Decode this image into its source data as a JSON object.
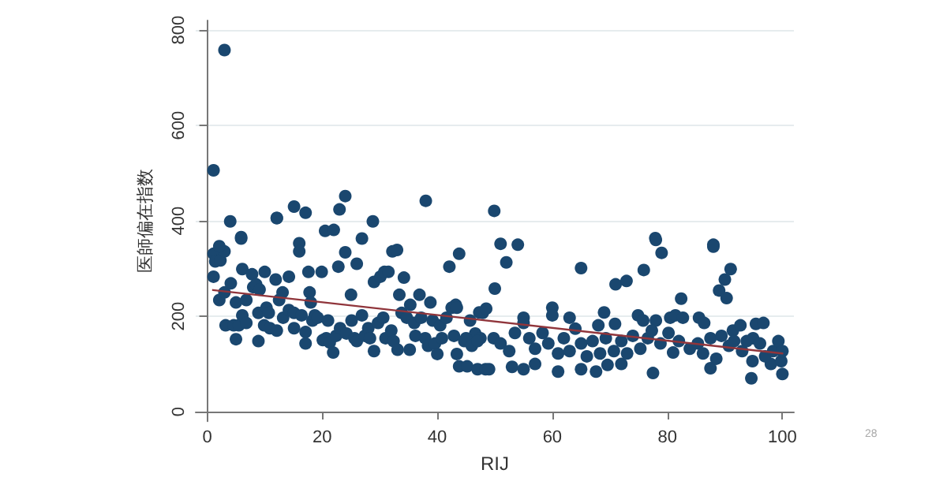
{
  "chart_data": {
    "type": "scatter",
    "xlabel": "RIJ",
    "ylabel": "医師偏在指数",
    "xlim": [
      -2,
      102
    ],
    "ylim": [
      -20,
      820
    ],
    "xticks": [
      0,
      20,
      40,
      60,
      80,
      100
    ],
    "yticks": [
      0,
      200,
      400,
      600,
      800
    ],
    "grid": "y",
    "annotations": [
      "28"
    ],
    "series": [
      {
        "type": "scatter",
        "marker": "circle",
        "color": "#1a476f",
        "x": [
          1.1,
          1.1,
          1.4,
          2.3,
          3,
          2.1,
          3,
          3.2,
          4.1,
          4,
          4.6,
          5,
          5.5,
          5,
          5.9,
          6.1,
          6.1,
          6.8,
          6.8,
          7.8,
          8,
          8.5,
          8.9,
          8.9,
          9.1,
          10,
          9.9,
          10.3,
          10.7,
          10.9,
          11.9,
          12.1,
          12.1,
          12.5,
          13.1,
          13.2,
          14.2,
          14.2,
          15.1,
          15.1,
          16,
          16,
          16.4,
          17.1,
          17.1,
          17.6,
          17.8,
          18,
          18.3,
          18.7,
          19.2,
          19.9,
          20.1,
          20.5,
          20.7,
          21,
          21.3,
          21.9,
          22.4,
          22.8,
          23.1,
          24,
          24.2,
          25,
          25.1,
          25.6,
          26,
          26,
          26.9,
          26.9,
          27.4,
          28,
          28.3,
          28.8,
          29,
          29,
          29.7,
          30.1,
          30.6,
          30.8,
          31,
          31.5,
          32,
          32.2,
          32.4,
          33,
          33.1,
          33.4,
          33.8,
          34.2,
          34.7,
          35.2,
          35.3,
          36,
          36.2,
          36.9,
          37.2,
          37.9,
          38.4,
          38.8,
          39.2,
          39.6,
          40,
          40.5,
          40.8,
          41.6,
          42.1,
          42.5,
          43.2,
          42.9,
          43.4,
          43.8,
          43.8,
          44.7,
          45.2,
          45.7,
          46.6,
          47,
          47.5,
          47.9,
          48.4,
          3,
          1.1,
          2.1,
          5.9,
          12.1,
          15.1,
          17.1,
          22,
          23,
          24,
          38,
          49.9,
          51,
          54,
          77.9,
          78,
          88,
          52,
          50,
          65,
          71,
          72.9,
          75.9,
          79,
          88,
          91,
          90,
          89,
          90.3,
          82.4,
          43.4,
          49,
          53,
          55,
          57,
          61,
          65,
          67.6,
          69.6,
          72,
          77.5,
          87.5,
          94.6,
          100,
          98,
          47.3,
          48.5,
          55,
          55,
          60,
          60,
          63,
          69,
          68,
          70.9,
          74.9,
          75.8,
          78,
          80.5,
          81.4,
          82.7,
          85.5,
          86.4,
          91.4,
          92.7,
          95.4,
          96.7,
          94.9,
          45,
          46,
          47,
          49.8,
          51,
          52.5,
          53.5,
          56,
          57,
          58.3,
          59.3,
          61,
          62,
          63,
          64,
          65,
          66,
          67,
          68.3,
          69.3,
          70.7,
          72,
          73,
          74,
          75.3,
          76.6,
          77.3,
          78.8,
          80.2,
          81,
          82,
          83.9,
          85.3,
          86.2,
          87.5,
          88.5,
          89.4,
          90.7,
          91.6,
          93,
          93.8,
          94.8,
          96.1,
          97,
          98.4,
          99.3,
          99.8,
          100
        ],
        "values": [
          283,
          331,
          315,
          317,
          336,
          234,
          250,
          181,
          269,
          399,
          181,
          152,
          181,
          229,
          363,
          299,
          202,
          234,
          186,
          288,
          261,
          267,
          148,
          207,
          256,
          293,
          181,
          218,
          207,
          175,
          277,
          170,
          406,
          234,
          250,
          197,
          283,
          213,
          207,
          175,
          353,
          336,
          202,
          167,
          143,
          293,
          250,
          229,
          191,
          202,
          197,
          293,
          150,
          379,
          154,
          191,
          145,
          124,
          159,
          304,
          175,
          334,
          164,
          245,
          191,
          154,
          310,
          148,
          202,
          363,
          159,
          175,
          154,
          399,
          127,
          272,
          186,
          283,
          197,
          293,
          154,
          293,
          170,
          336,
          148,
          339,
          130,
          245,
          207,
          281,
          197,
          130,
          224,
          186,
          159,
          245,
          197,
          154,
          138,
          229,
          191,
          143,
          121,
          181,
          154,
          197,
          304,
          218,
          224,
          159,
          121,
          331,
          95,
          148,
          95,
          191,
          164,
          89,
          154,
          207,
          89,
          758,
          506,
          347,
          366,
          406,
          430,
          417,
          381,
          424,
          452,
          442,
          421,
          352,
          350,
          364,
          360,
          350,
          313,
          258,
          301,
          267,
          274,
          297,
          333,
          346,
          299,
          277,
          254,
          238,
          237,
          218,
          89,
          94,
          89,
          100,
          84,
          89,
          84,
          98,
          100,
          81,
          91,
          70,
          79,
          100,
          208,
          216,
          197,
          186,
          218,
          202,
          197,
          208,
          181,
          184,
          202,
          191,
          191,
          197,
          202,
          197,
          197,
          186,
          170,
          181,
          184,
          186,
          154,
          154,
          138,
          148,
          154,
          143,
          127,
          165,
          154,
          132,
          165,
          143,
          122,
          154,
          127,
          174,
          143,
          116,
          148,
          122,
          154,
          127,
          148,
          122,
          159,
          132,
          154,
          170,
          143,
          165,
          124,
          148,
          132,
          143,
          122,
          154,
          111,
          159,
          138,
          148,
          127,
          148,
          106,
          143,
          116,
          127,
          148,
          106,
          127
        ]
      },
      {
        "type": "line",
        "marker": "none",
        "line_style": "solid",
        "color": "#90353b",
        "x": [
          1,
          100
        ],
        "values": [
          255,
          122
        ]
      }
    ]
  }
}
